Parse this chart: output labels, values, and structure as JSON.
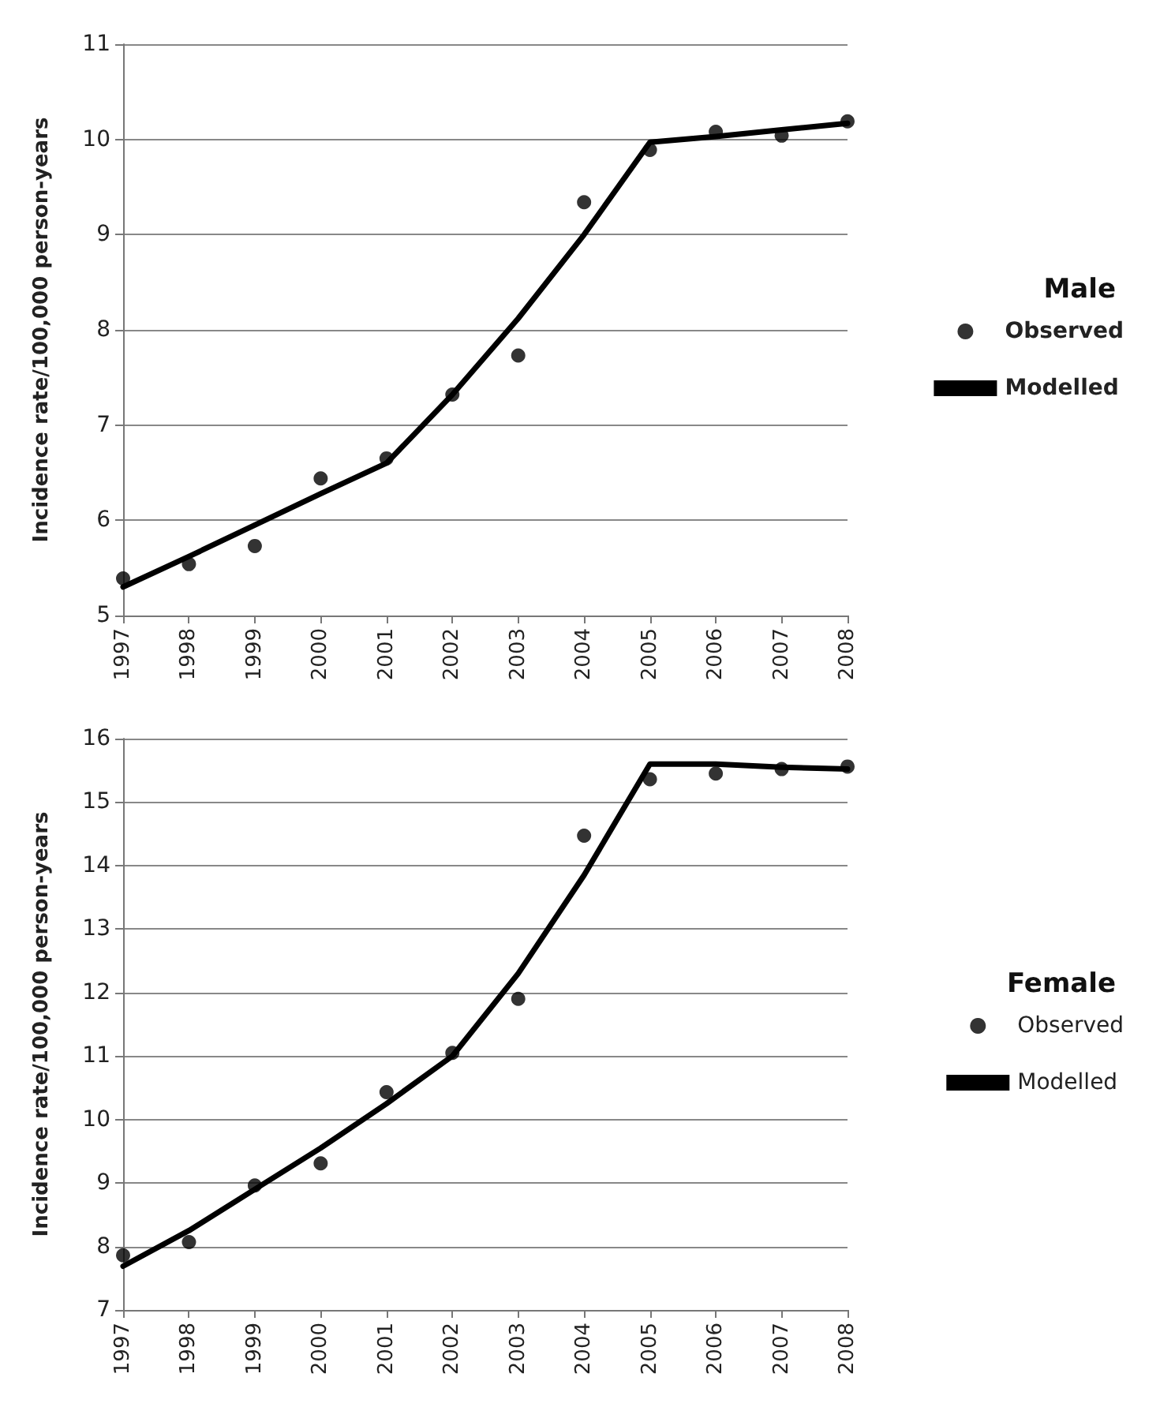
{
  "chart_data": [
    {
      "type": "line",
      "legend_title": "Male",
      "ylabel": "Incidence rate/100,000 person-years",
      "categories": [
        "1997",
        "1998",
        "1999",
        "2000",
        "2001",
        "2002",
        "2003",
        "2004",
        "2005",
        "2006",
        "2007",
        "2008"
      ],
      "ylim": [
        5,
        11
      ],
      "yticks": [
        5,
        6,
        7,
        8,
        9,
        10,
        11
      ],
      "grid": "y",
      "legend": "right",
      "series": [
        {
          "name": "Observed",
          "type": "scatter",
          "marker": "circle",
          "color": "#000000",
          "values": [
            5.39,
            5.54,
            5.73,
            6.44,
            6.65,
            7.32,
            7.73,
            9.34,
            9.89,
            10.08,
            10.04,
            10.19
          ]
        },
        {
          "name": "Modelled",
          "type": "line",
          "marker": "none",
          "color": "#000000",
          "values": [
            5.3,
            5.62,
            5.95,
            6.28,
            6.6,
            7.32,
            8.12,
            9.0,
            9.97,
            10.03,
            10.1,
            10.17
          ]
        }
      ]
    },
    {
      "type": "line",
      "legend_title": "Female",
      "ylabel": "Incidence rate/100,000 person-years",
      "categories": [
        "1997",
        "1998",
        "1999",
        "2000",
        "2001",
        "2002",
        "2003",
        "2004",
        "2005",
        "2006",
        "2007",
        "2008"
      ],
      "ylim": [
        7,
        16
      ],
      "yticks": [
        7,
        8,
        9,
        10,
        11,
        12,
        13,
        14,
        15,
        16
      ],
      "grid": "y",
      "legend": "right",
      "series": [
        {
          "name": "Observed",
          "type": "scatter",
          "marker": "circle",
          "color": "#000000",
          "values": [
            7.86,
            8.07,
            8.96,
            9.31,
            10.43,
            11.05,
            11.9,
            14.47,
            15.36,
            15.45,
            15.52,
            15.56
          ]
        },
        {
          "name": "Modelled",
          "type": "line",
          "marker": "none",
          "color": "#000000",
          "values": [
            7.69,
            8.25,
            8.9,
            9.55,
            10.25,
            11.0,
            12.3,
            13.85,
            15.6,
            15.6,
            15.55,
            15.52
          ]
        }
      ]
    }
  ]
}
